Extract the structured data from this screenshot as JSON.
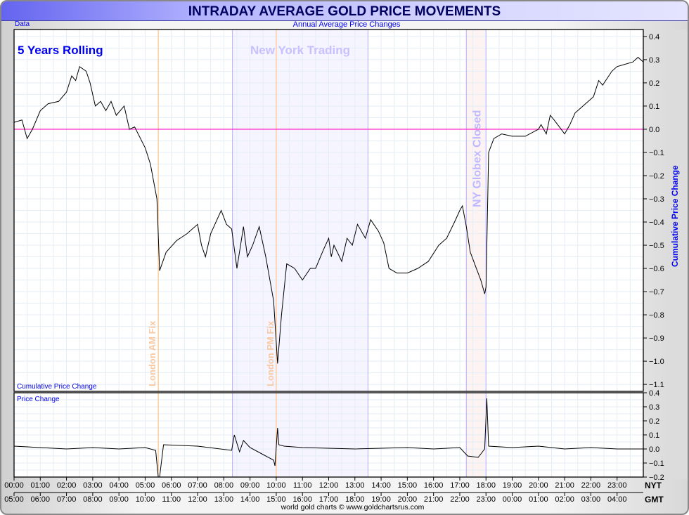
{
  "title": "INTRADAY AVERAGE GOLD PRICE MOVEMENTS",
  "corner_label": "Data",
  "subtitle": "Annual Average Price Changes",
  "credit": "world gold charts © www.goldchartsrus.com",
  "colors": {
    "zero_line": "#ff33cc",
    "fix_line": "#ffbb77",
    "session_line": "#b0b0ff",
    "ny_fill": "#f5f4ff",
    "globex_fill": "#fdf3f3",
    "series": "#000000",
    "label_blue": "#0000ee"
  },
  "chart_data": [
    {
      "type": "line",
      "panel_label": "Cumulative Price Change",
      "ylabel": "Cumulative Price Change",
      "annotation_main": "5 Years Rolling",
      "ylim": [
        -1.13,
        0.43
      ],
      "yticks": [
        0.4,
        0.3,
        0.2,
        0.1,
        0.0,
        -0.1,
        -0.2,
        -0.3,
        -0.4,
        -0.5,
        -0.6,
        -0.7,
        -0.8,
        -0.9,
        -1.0,
        -1.1
      ],
      "grid": true,
      "zero_line": 0.0,
      "xlim": [
        "00:00",
        "24:00"
      ],
      "x_nyt_hours": [
        0,
        0.3,
        0.5,
        0.7,
        1.0,
        1.3,
        1.7,
        2.0,
        2.2,
        2.35,
        2.5,
        2.75,
        2.9,
        3.1,
        3.3,
        3.5,
        3.7,
        3.9,
        4.2,
        4.4,
        4.6,
        5.0,
        5.2,
        5.45,
        5.55,
        5.8,
        6.2,
        6.6,
        7.0,
        7.15,
        7.3,
        7.5,
        7.9,
        8.1,
        8.3,
        8.5,
        8.75,
        8.9,
        9.1,
        9.35,
        9.6,
        9.9,
        10.05,
        10.2,
        10.4,
        10.7,
        11.0,
        11.3,
        11.5,
        11.8,
        12.0,
        12.1,
        12.2,
        12.5,
        12.7,
        12.9,
        13.1,
        13.4,
        13.6,
        13.9,
        14.1,
        14.3,
        14.6,
        15.0,
        15.4,
        15.8,
        16.2,
        16.5,
        16.8,
        17.0,
        17.1,
        17.25,
        17.4,
        17.6,
        17.8,
        17.95,
        18.0,
        18.1,
        18.3,
        18.6,
        19.0,
        19.5,
        20.0,
        20.1,
        20.3,
        20.45,
        20.6,
        20.8,
        21.0,
        21.2,
        21.4,
        21.7,
        21.9,
        22.1,
        22.3,
        22.45,
        22.8,
        23.0,
        23.3,
        23.6,
        23.8,
        24.0
      ],
      "values": [
        0.03,
        0.04,
        -0.04,
        0.0,
        0.08,
        0.11,
        0.12,
        0.16,
        0.23,
        0.21,
        0.27,
        0.25,
        0.2,
        0.1,
        0.12,
        0.08,
        0.12,
        0.06,
        0.1,
        0.0,
        0.01,
        -0.08,
        -0.15,
        -0.3,
        -0.61,
        -0.53,
        -0.48,
        -0.45,
        -0.41,
        -0.5,
        -0.55,
        -0.45,
        -0.35,
        -0.41,
        -0.43,
        -0.6,
        -0.42,
        -0.55,
        -0.5,
        -0.42,
        -0.55,
        -0.74,
        -1.01,
        -0.8,
        -0.58,
        -0.6,
        -0.65,
        -0.6,
        -0.6,
        -0.52,
        -0.47,
        -0.55,
        -0.5,
        -0.57,
        -0.47,
        -0.5,
        -0.41,
        -0.47,
        -0.39,
        -0.44,
        -0.49,
        -0.6,
        -0.62,
        -0.62,
        -0.6,
        -0.57,
        -0.5,
        -0.47,
        -0.4,
        -0.35,
        -0.33,
        -0.42,
        -0.53,
        -0.59,
        -0.65,
        -0.71,
        -0.68,
        -0.1,
        -0.04,
        -0.02,
        -0.03,
        -0.03,
        0.0,
        0.02,
        -0.02,
        0.06,
        0.04,
        0.01,
        -0.02,
        0.02,
        0.07,
        0.1,
        0.12,
        0.14,
        0.21,
        0.19,
        0.25,
        0.27,
        0.28,
        0.29,
        0.31,
        0.29
      ],
      "regions": [
        {
          "label": "New York Trading",
          "start": 8.33,
          "end": 13.5
        },
        {
          "label": "NY Globex Closed",
          "start": 17.25,
          "end": 18.0
        }
      ],
      "events": [
        {
          "label": "London AM Fix",
          "time": 5.5
        },
        {
          "label": "London PM Fix",
          "time": 10.0
        }
      ]
    },
    {
      "type": "line",
      "panel_label": "Price Change",
      "ylim": [
        -0.2,
        0.4
      ],
      "yticks": [
        0.4,
        0.3,
        0.2,
        0.1,
        0.0,
        -0.1,
        -0.2
      ],
      "grid": true,
      "x_nyt_hours": [
        0,
        1,
        2,
        3,
        4,
        5,
        5.4,
        5.5,
        5.55,
        5.7,
        7,
        8.3,
        8.4,
        8.6,
        8.75,
        9,
        9.5,
        9.9,
        9.95,
        10.05,
        10.1,
        10.3,
        11,
        13,
        15,
        16,
        17,
        17.3,
        17.7,
        17.95,
        18.03,
        18.1,
        19,
        20,
        21,
        22,
        23,
        24
      ],
      "values": [
        0.02,
        0.01,
        0.0,
        0.01,
        0.0,
        0.01,
        -0.01,
        -0.2,
        -0.2,
        0.03,
        0.02,
        -0.01,
        0.1,
        -0.02,
        0.06,
        0.01,
        -0.04,
        -0.08,
        -0.12,
        0.15,
        0.03,
        0.02,
        0.01,
        0.0,
        0.01,
        0.0,
        0.01,
        -0.05,
        -0.06,
        0.0,
        0.36,
        0.02,
        0.01,
        0.02,
        0.0,
        0.01,
        0.0,
        0.0
      ]
    }
  ],
  "x_axis": {
    "nyt_label": "NYT",
    "gmt_label": "GMT",
    "nyt_ticks": [
      "00:00",
      "01:00",
      "02:00",
      "03:00",
      "04:00",
      "05:00",
      "06:00",
      "07:00",
      "08:00",
      "09:00",
      "10:00",
      "11:00",
      "12:00",
      "13:00",
      "14:00",
      "15:00",
      "16:00",
      "17:00",
      "18:00",
      "19:00",
      "20:00",
      "21:00",
      "22:00",
      "23:00"
    ],
    "gmt_ticks": [
      "05:00",
      "06:00",
      "07:00",
      "08:00",
      "09:00",
      "10:00",
      "11:00",
      "12:00",
      "13:00",
      "14:00",
      "15:00",
      "16:00",
      "17:00",
      "18:00",
      "19:00",
      "20:00",
      "21:00",
      "22:00",
      "23:00",
      "00:00",
      "01:00",
      "02:00",
      "03:00",
      "04:00"
    ]
  }
}
